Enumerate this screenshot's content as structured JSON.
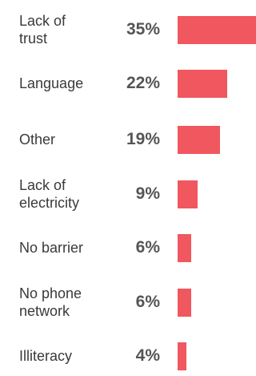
{
  "chart_data": {
    "type": "bar",
    "orientation": "horizontal",
    "categories": [
      "Lack of trust",
      "Language",
      "Other",
      "Lack of electricity",
      "No barrier",
      "No phone network",
      "Illiteracy"
    ],
    "category_lines": [
      [
        "Lack of",
        "trust"
      ],
      [
        "Language"
      ],
      [
        "Other"
      ],
      [
        "Lack of",
        "electricity"
      ],
      [
        "No barrier"
      ],
      [
        "No phone",
        "network"
      ],
      [
        "Illiteracy"
      ]
    ],
    "values": [
      35,
      22,
      19,
      9,
      6,
      6,
      4
    ],
    "value_labels": [
      "35%",
      "22%",
      "19%",
      "9%",
      "6%",
      "6%",
      "4%"
    ],
    "unit": "%",
    "xlim": [
      0,
      35
    ],
    "grid": false,
    "bar_color": "#f0575f"
  }
}
